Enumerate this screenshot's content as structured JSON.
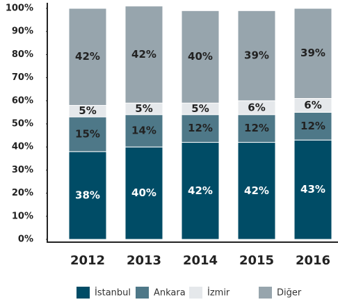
{
  "chart_data": {
    "type": "stacked_bar",
    "categories": [
      "2012",
      "2013",
      "2014",
      "2015",
      "2016"
    ],
    "series": [
      {
        "name": "İstanbul",
        "color": "#004c66",
        "values": [
          38,
          40,
          42,
          42,
          43
        ],
        "value_labels": [
          "38%",
          "40%",
          "42%",
          "42%",
          "43%"
        ]
      },
      {
        "name": "Ankara",
        "color": "#4e7888",
        "values": [
          15,
          14,
          12,
          12,
          12
        ],
        "value_labels": [
          "15%",
          "14%",
          "12%",
          "12%",
          "12%"
        ]
      },
      {
        "name": "İzmir",
        "color": "#e5e8eb",
        "values": [
          5,
          5,
          5,
          6,
          6
        ],
        "value_labels": [
          "5%",
          "5%",
          "5%",
          "6%",
          "6%"
        ]
      },
      {
        "name": "Diğer",
        "color": "#97a5ad",
        "values": [
          42,
          42,
          40,
          39,
          39
        ],
        "value_labels": [
          "42%",
          "42%",
          "40%",
          "39%",
          "39%"
        ]
      }
    ],
    "ylim": [
      0,
      100
    ],
    "yticks": [
      {
        "value": 0,
        "label": "0%"
      },
      {
        "value": 10,
        "label": "10%"
      },
      {
        "value": 20,
        "label": "20%"
      },
      {
        "value": 30,
        "label": "30%"
      },
      {
        "value": 40,
        "label": "40%"
      },
      {
        "value": 50,
        "label": "50%"
      },
      {
        "value": 60,
        "label": "60%"
      },
      {
        "value": 70,
        "label": "70%"
      },
      {
        "value": 80,
        "label": "80%"
      },
      {
        "value": 90,
        "label": "90%"
      },
      {
        "value": 100,
        "label": "100%"
      }
    ],
    "grid": false
  }
}
